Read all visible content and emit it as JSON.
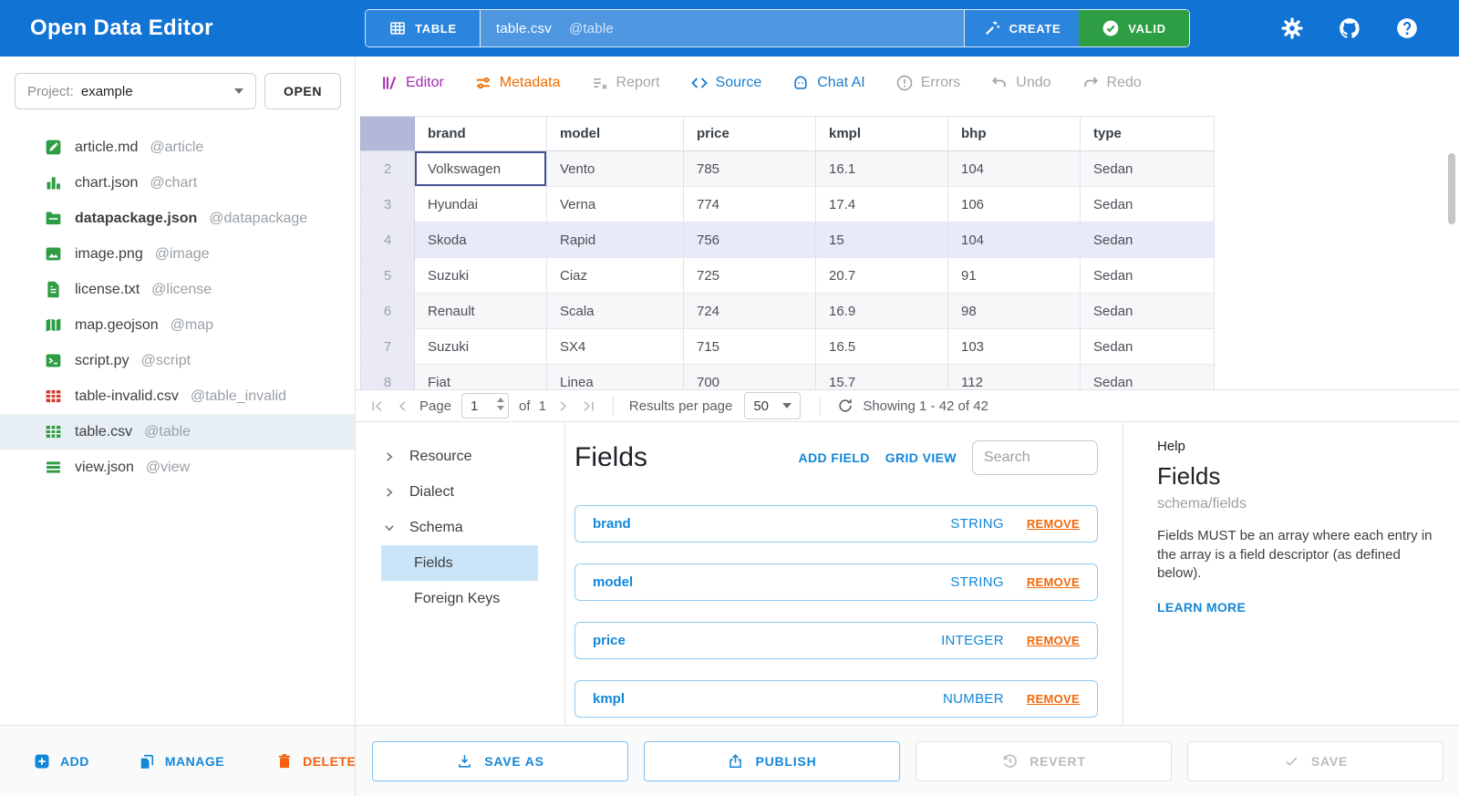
{
  "colors": {
    "topbar_blue": "#1173d4",
    "topbar_segment_blue": "#2b85dd",
    "topbar_field_blue": "#4f97e0",
    "valid_green": "#2e9e44",
    "accent_blue": "#1287d8",
    "editor_purple": "#a62bb5",
    "metadata_orange": "#ef6c00",
    "disabled_gray": "#a2a6ab",
    "remove_orange": "#f4680a",
    "delete_orange": "#f4600c",
    "file_icon_green": "#2e9d44",
    "file_icon_red": "#d33a2f",
    "row_highlight": "#e7ebf7",
    "selected_file_bg": "#e7eff5"
  },
  "topbar": {
    "app_title": "Open Data Editor",
    "file_type_button": "TABLE",
    "file_name": "table.csv",
    "file_alias": "@table",
    "create_button": "CREATE",
    "valid_button": "VALID"
  },
  "sidebar": {
    "project_label": "Project:",
    "project_value": "example",
    "open_button": "OPEN",
    "files": [
      {
        "name": "article.md",
        "alias": "@article",
        "icon": "pencil-box-icon",
        "color": "#2e9d44",
        "bold": false,
        "selected": false
      },
      {
        "name": "chart.json",
        "alias": "@chart",
        "icon": "bar-chart-icon",
        "color": "#2e9d44",
        "bold": false,
        "selected": false
      },
      {
        "name": "datapackage.json",
        "alias": "@datapackage",
        "icon": "folder-icon",
        "color": "#2e9d44",
        "bold": true,
        "selected": false
      },
      {
        "name": "image.png",
        "alias": "@image",
        "icon": "image-icon",
        "color": "#2e9d44",
        "bold": false,
        "selected": false
      },
      {
        "name": "license.txt",
        "alias": "@license",
        "icon": "document-icon",
        "color": "#2e9d44",
        "bold": false,
        "selected": false
      },
      {
        "name": "map.geojson",
        "alias": "@map",
        "icon": "map-icon",
        "color": "#2e9d44",
        "bold": false,
        "selected": false
      },
      {
        "name": "script.py",
        "alias": "@script",
        "icon": "terminal-icon",
        "color": "#2e9d44",
        "bold": false,
        "selected": false
      },
      {
        "name": "table-invalid.csv",
        "alias": "@table_invalid",
        "icon": "table-icon",
        "color": "#d33a2f",
        "bold": false,
        "selected": false
      },
      {
        "name": "table.csv",
        "alias": "@table",
        "icon": "table-icon",
        "color": "#2e9d44",
        "bold": false,
        "selected": true
      },
      {
        "name": "view.json",
        "alias": "@view",
        "icon": "list-lines-icon",
        "color": "#2e9d44",
        "bold": false,
        "selected": false
      }
    ],
    "actions": {
      "add": "ADD",
      "manage": "MANAGE",
      "delete": "DELETE"
    }
  },
  "tabs": [
    {
      "label": "Editor",
      "icon": "editor-icon",
      "color": "#a62bb5",
      "enabled": true
    },
    {
      "label": "Metadata",
      "icon": "metadata-icon",
      "color": "#ef6c00",
      "enabled": true
    },
    {
      "label": "Report",
      "icon": "report-icon",
      "color": "#a2a6ab",
      "enabled": false
    },
    {
      "label": "Source",
      "icon": "source-icon",
      "color": "#1a7cd0",
      "enabled": true
    },
    {
      "label": "Chat AI",
      "icon": "chat-ai-icon",
      "color": "#1a7cd0",
      "enabled": true
    },
    {
      "label": "Errors",
      "icon": "errors-icon",
      "color": "#a2a6ab",
      "enabled": false
    },
    {
      "label": "Undo",
      "icon": "undo-icon",
      "color": "#a2a6ab",
      "enabled": false
    },
    {
      "label": "Redo",
      "icon": "redo-icon",
      "color": "#a2a6ab",
      "enabled": false
    }
  ],
  "grid": {
    "columns": [
      "brand",
      "model",
      "price",
      "kmpl",
      "bhp",
      "type"
    ],
    "rows": [
      {
        "num": 2,
        "cells": [
          "Volkswagen",
          "Vento",
          "785",
          "16.1",
          "104",
          "Sedan"
        ],
        "highlighted": false
      },
      {
        "num": 3,
        "cells": [
          "Hyundai",
          "Verna",
          "774",
          "17.4",
          "106",
          "Sedan"
        ],
        "highlighted": false
      },
      {
        "num": 4,
        "cells": [
          "Skoda",
          "Rapid",
          "756",
          "15",
          "104",
          "Sedan"
        ],
        "highlighted": true
      },
      {
        "num": 5,
        "cells": [
          "Suzuki",
          "Ciaz",
          "725",
          "20.7",
          "91",
          "Sedan"
        ],
        "highlighted": false
      },
      {
        "num": 6,
        "cells": [
          "Renault",
          "Scala",
          "724",
          "16.9",
          "98",
          "Sedan"
        ],
        "highlighted": false
      },
      {
        "num": 7,
        "cells": [
          "Suzuki",
          "SX4",
          "715",
          "16.5",
          "103",
          "Sedan"
        ],
        "highlighted": false
      },
      {
        "num": 8,
        "cells": [
          "Fiat",
          "Linea",
          "700",
          "15.7",
          "112",
          "Sedan"
        ],
        "highlighted": false
      }
    ],
    "selected_cell": {
      "row_num": 2,
      "column": "brand"
    }
  },
  "pagination": {
    "page_label": "Page",
    "page_value": "1",
    "of_label": "of",
    "total_pages": "1",
    "per_page_label": "Results per page",
    "per_page_value": "50",
    "showing_text": "Showing 1 - 42 of 42"
  },
  "schema_tree": {
    "items": [
      {
        "label": "Resource",
        "chevron": "right",
        "child": false,
        "selected": false
      },
      {
        "label": "Dialect",
        "chevron": "right",
        "child": false,
        "selected": false
      },
      {
        "label": "Schema",
        "chevron": "down",
        "child": false,
        "selected": false
      },
      {
        "label": "Fields",
        "chevron": "",
        "child": true,
        "selected": true
      },
      {
        "label": "Foreign Keys",
        "chevron": "",
        "child": true,
        "selected": false
      }
    ]
  },
  "fields_panel": {
    "title": "Fields",
    "add_field_button": "ADD FIELD",
    "grid_view_button": "GRID VIEW",
    "search_placeholder": "Search",
    "fields": [
      {
        "name": "brand",
        "type": "STRING",
        "remove_label": "REMOVE"
      },
      {
        "name": "model",
        "type": "STRING",
        "remove_label": "REMOVE"
      },
      {
        "name": "price",
        "type": "INTEGER",
        "remove_label": "REMOVE"
      },
      {
        "name": "kmpl",
        "type": "NUMBER",
        "remove_label": "REMOVE"
      }
    ]
  },
  "help_panel": {
    "kicker": "Help",
    "title": "Fields",
    "path": "schema/fields",
    "body": "Fields MUST be an array where each entry in the array is a field descriptor (as defined below).",
    "learn_more": "LEARN MORE"
  },
  "footer": {
    "save_as": "SAVE AS",
    "publish": "PUBLISH",
    "revert": "REVERT",
    "save": "SAVE"
  }
}
